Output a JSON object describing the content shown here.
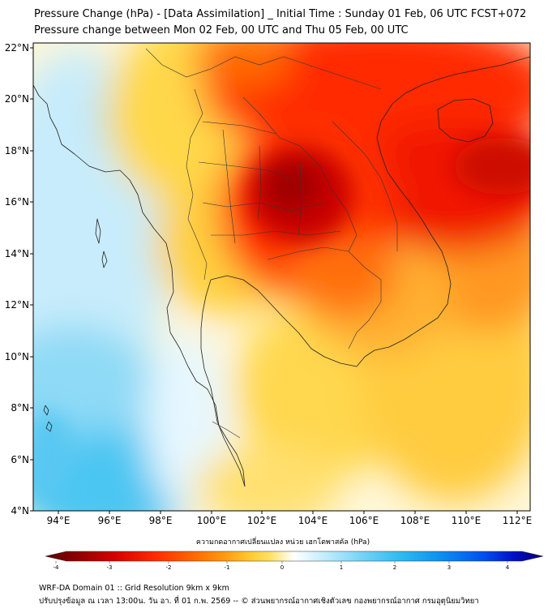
{
  "title": {
    "line1": "Pressure Change (hPa) - [Data Assimilation] _ Initial Time : Sunday 01 Feb, 06 UTC FCST+072",
    "line2": "Pressure change between Mon 02 Feb, 00 UTC and Thu 05 Feb, 00 UTC"
  },
  "axes": {
    "lat_labels": [
      "22°N",
      "20°N",
      "18°N",
      "16°N",
      "14°N",
      "12°N",
      "10°N",
      "8°N",
      "6°N",
      "4°N"
    ],
    "lon_labels": [
      "94°E",
      "96°E",
      "98°E",
      "100°E",
      "102°E",
      "104°E",
      "106°E",
      "108°E",
      "110°E",
      "112°E"
    ],
    "lat_range": [
      4,
      22.3
    ],
    "lon_range": [
      93,
      112.5
    ]
  },
  "colorbar": {
    "label": "ความกดอากาศเปลี่ยนแปลง หน่วย เฮกโตพาสคัล (hPa)",
    "ticks": [
      "-4",
      "-3",
      "-2",
      "-1",
      "0",
      "1",
      "2",
      "3",
      "4"
    ],
    "range": [
      -4,
      4
    ],
    "colors": [
      "#5a0000",
      "#8b0000",
      "#d60000",
      "#ff1a00",
      "#ff5a00",
      "#ff9a10",
      "#ffc830",
      "#ffe060",
      "#fff4c0",
      "#ffffff",
      "#e0f6ff",
      "#b0e6fa",
      "#70d2f6",
      "#2ab8f0",
      "#0a8cf0",
      "#0050f0",
      "#0010c8",
      "#00006e"
    ]
  },
  "footer": {
    "line1": "WRF-DA Domain 01 :: Grid Resolution 9km x 9km",
    "line2": "ปรับปรุงข้อมูล ณ เวลา 13:00น. วัน อา. ที่ 01 ก.พ. 2569 -- © ส่วนพยากรณ์อากาศเชิงตัวเลข กองพยากรณ์อากาศ กรมอุตุนิยมวิทยา"
  }
}
